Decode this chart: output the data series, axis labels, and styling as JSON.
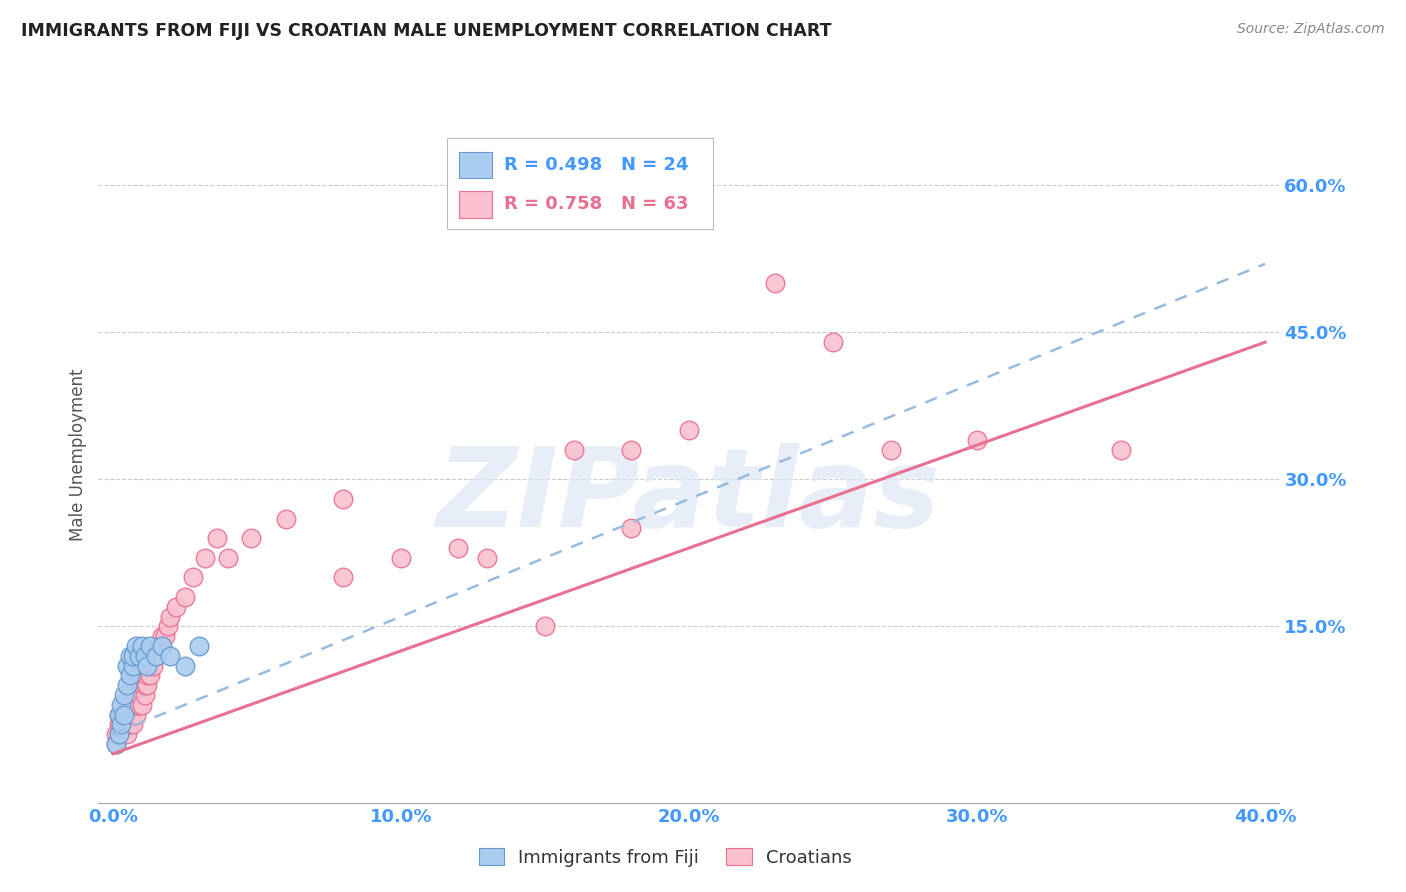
{
  "title": "IMMIGRANTS FROM FIJI VS CROATIAN MALE UNEMPLOYMENT CORRELATION CHART",
  "source": "Source: ZipAtlas.com",
  "xlabel_ticks": [
    "0.0%",
    "10.0%",
    "20.0%",
    "30.0%",
    "40.0%"
  ],
  "ylabel_ticks_right": [
    "60.0%",
    "45.0%",
    "30.0%",
    "15.0%"
  ],
  "ylabel_tick_vals": [
    0.6,
    0.45,
    0.3,
    0.15
  ],
  "xlim": [
    -0.005,
    0.405
  ],
  "ylim": [
    -0.03,
    0.68
  ],
  "ylabel": "Male Unemployment",
  "legend_label1": "Immigrants from Fiji",
  "legend_label2": "Croatians",
  "legend_r1": "R = 0.498",
  "legend_n1": "N = 24",
  "legend_r2": "R = 0.758",
  "legend_n2": "N = 63",
  "fiji_color": "#aaccf0",
  "fiji_edge_color": "#6699cc",
  "croatian_color": "#f9c0cf",
  "croatian_edge_color": "#e87090",
  "fiji_line_color": "#99bbdd",
  "croatian_line_color": "#e87090",
  "watermark_color": "#dde8f5",
  "watermark_text": "ZIPatlas",
  "background_color": "#ffffff",
  "grid_color": "#cccccc",
  "fiji_scatter_x": [
    0.001,
    0.002,
    0.002,
    0.003,
    0.003,
    0.004,
    0.004,
    0.005,
    0.005,
    0.006,
    0.006,
    0.007,
    0.007,
    0.008,
    0.009,
    0.01,
    0.011,
    0.012,
    0.013,
    0.015,
    0.017,
    0.02,
    0.025,
    0.03
  ],
  "fiji_scatter_y": [
    0.03,
    0.04,
    0.06,
    0.05,
    0.07,
    0.08,
    0.06,
    0.09,
    0.11,
    0.1,
    0.12,
    0.11,
    0.12,
    0.13,
    0.12,
    0.13,
    0.12,
    0.11,
    0.13,
    0.12,
    0.13,
    0.12,
    0.11,
    0.13
  ],
  "croatian_scatter_x": [
    0.001,
    0.001,
    0.002,
    0.002,
    0.002,
    0.003,
    0.003,
    0.003,
    0.004,
    0.004,
    0.004,
    0.005,
    0.005,
    0.005,
    0.005,
    0.006,
    0.006,
    0.006,
    0.007,
    0.007,
    0.007,
    0.008,
    0.008,
    0.008,
    0.009,
    0.009,
    0.01,
    0.01,
    0.011,
    0.011,
    0.012,
    0.012,
    0.013,
    0.014,
    0.015,
    0.016,
    0.017,
    0.018,
    0.019,
    0.02,
    0.022,
    0.025,
    0.028,
    0.032,
    0.036,
    0.04,
    0.048,
    0.06,
    0.08,
    0.1,
    0.13,
    0.16,
    0.2,
    0.23,
    0.27,
    0.08,
    0.12,
    0.15,
    0.18,
    0.25,
    0.3,
    0.18,
    0.35
  ],
  "croatian_scatter_y": [
    0.03,
    0.04,
    0.04,
    0.05,
    0.06,
    0.04,
    0.05,
    0.06,
    0.05,
    0.06,
    0.07,
    0.04,
    0.05,
    0.06,
    0.07,
    0.05,
    0.06,
    0.07,
    0.05,
    0.07,
    0.08,
    0.06,
    0.07,
    0.08,
    0.07,
    0.08,
    0.07,
    0.09,
    0.08,
    0.09,
    0.09,
    0.1,
    0.1,
    0.11,
    0.12,
    0.13,
    0.14,
    0.14,
    0.15,
    0.16,
    0.17,
    0.18,
    0.2,
    0.22,
    0.24,
    0.22,
    0.24,
    0.26,
    0.28,
    0.22,
    0.22,
    0.33,
    0.35,
    0.5,
    0.33,
    0.2,
    0.23,
    0.15,
    0.25,
    0.44,
    0.34,
    0.33,
    0.33
  ],
  "fiji_trendline_x": [
    0.0,
    0.4
  ],
  "fiji_trendline_y": [
    0.04,
    0.52
  ],
  "croatian_trendline_x": [
    0.0,
    0.4
  ],
  "croatian_trendline_y": [
    0.02,
    0.44
  ]
}
